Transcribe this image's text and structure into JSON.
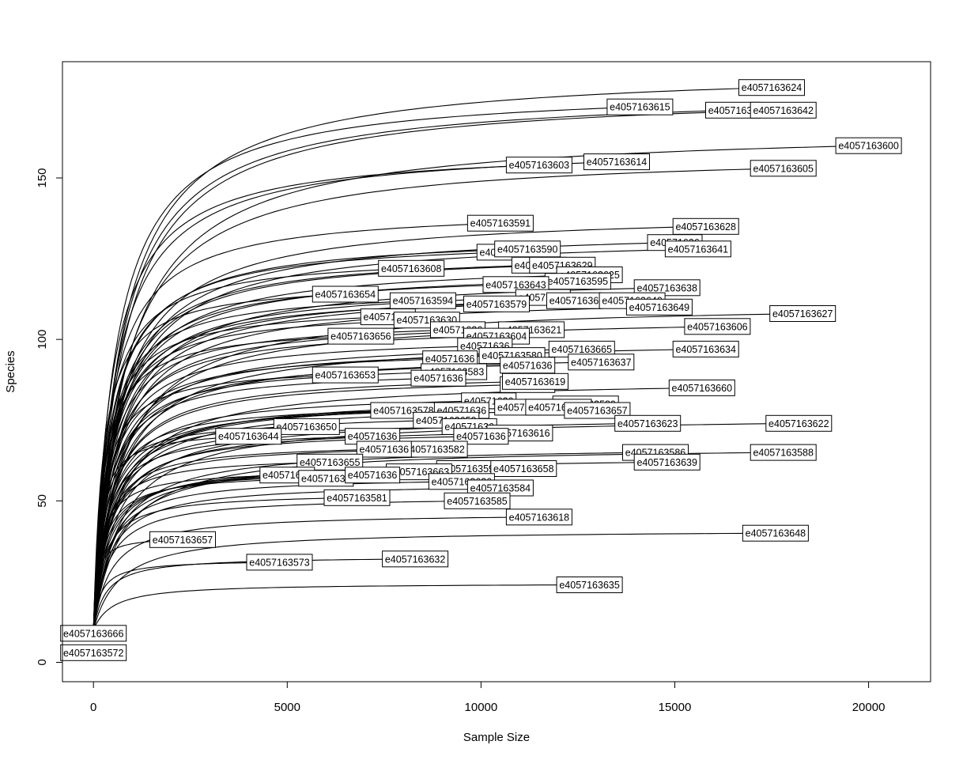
{
  "chart_data": {
    "type": "line",
    "subtype": "rarefaction-curves",
    "xlabel": "Sample Size",
    "ylabel": "Species",
    "xlim": [
      -800,
      21600
    ],
    "ylim": [
      -6,
      186
    ],
    "xticks": [
      0,
      5000,
      10000,
      15000,
      20000
    ],
    "xtick_labels": [
      "0",
      "5000",
      "10000",
      "15000",
      "20000"
    ],
    "yticks": [
      0,
      50,
      100,
      150
    ],
    "ytick_labels": [
      "0",
      "50",
      "100",
      "150"
    ],
    "grid": false,
    "legend": "none",
    "line_color": "#000000",
    "curve_start": [
      0,
      10
    ],
    "series": [
      {
        "name": "e4057163624",
        "end_x": 17500,
        "end_y": 178
      },
      {
        "name": "e4057163615",
        "end_x": 14100,
        "end_y": 172
      },
      {
        "name": "e40571636",
        "end_x": 16500,
        "end_y": 171
      },
      {
        "name": "e4057163642",
        "end_x": 17800,
        "end_y": 171
      },
      {
        "name": "e4057163600",
        "end_x": 20000,
        "end_y": 160
      },
      {
        "name": "e4057163603",
        "end_x": 11500,
        "end_y": 154
      },
      {
        "name": "e4057163614",
        "end_x": 13500,
        "end_y": 155
      },
      {
        "name": "e4057163605",
        "end_x": 17800,
        "end_y": 153
      },
      {
        "name": "e4057163591",
        "end_x": 10500,
        "end_y": 136
      },
      {
        "name": "e4057163628",
        "end_x": 15800,
        "end_y": 135
      },
      {
        "name": "e40571636",
        "end_x": 15000,
        "end_y": 130
      },
      {
        "name": "e4057163641",
        "end_x": 15600,
        "end_y": 128
      },
      {
        "name": "e40571636",
        "end_x": 10600,
        "end_y": 127
      },
      {
        "name": "e4057163590",
        "end_x": 11200,
        "end_y": 128
      },
      {
        "name": "e40571636",
        "end_x": 11500,
        "end_y": 123
      },
      {
        "name": "e4057163629",
        "end_x": 12100,
        "end_y": 123
      },
      {
        "name": "e4057163608",
        "end_x": 8200,
        "end_y": 122
      },
      {
        "name": "e4057163625",
        "end_x": 12800,
        "end_y": 120
      },
      {
        "name": "e4057163595",
        "end_x": 12500,
        "end_y": 118
      },
      {
        "name": "e4057163643",
        "end_x": 10900,
        "end_y": 117
      },
      {
        "name": "e4057163638",
        "end_x": 14800,
        "end_y": 116
      },
      {
        "name": "e4057163654",
        "end_x": 6500,
        "end_y": 114
      },
      {
        "name": "e40571636",
        "end_x": 11600,
        "end_y": 113
      },
      {
        "name": "e4057163594",
        "end_x": 8500,
        "end_y": 112
      },
      {
        "name": "e4057163579",
        "end_x": 10400,
        "end_y": 111
      },
      {
        "name": "e40571636",
        "end_x": 12400,
        "end_y": 112
      },
      {
        "name": "e4057163640",
        "end_x": 13900,
        "end_y": 112
      },
      {
        "name": "e4057163649",
        "end_x": 14600,
        "end_y": 110
      },
      {
        "name": "e4057163627",
        "end_x": 18300,
        "end_y": 108
      },
      {
        "name": "e40571636",
        "end_x": 7600,
        "end_y": 107
      },
      {
        "name": "e4057163630",
        "end_x": 8600,
        "end_y": 106
      },
      {
        "name": "e4057163606",
        "end_x": 16100,
        "end_y": 104
      },
      {
        "name": "e4057163621",
        "end_x": 11300,
        "end_y": 103
      },
      {
        "name": "e40571636",
        "end_x": 9400,
        "end_y": 103
      },
      {
        "name": "e4057163656",
        "end_x": 6900,
        "end_y": 101
      },
      {
        "name": "e4057163604",
        "end_x": 10400,
        "end_y": 101
      },
      {
        "name": "e40571636",
        "end_x": 10100,
        "end_y": 98
      },
      {
        "name": "e4057163665",
        "end_x": 12600,
        "end_y": 97
      },
      {
        "name": "e4057163634",
        "end_x": 15800,
        "end_y": 97
      },
      {
        "name": "e40571636",
        "end_x": 9200,
        "end_y": 94
      },
      {
        "name": "e4057163580",
        "end_x": 10800,
        "end_y": 95
      },
      {
        "name": "e4057163637",
        "end_x": 13100,
        "end_y": 93
      },
      {
        "name": "e40571636",
        "end_x": 11200,
        "end_y": 92
      },
      {
        "name": "e4057163653",
        "end_x": 6500,
        "end_y": 89
      },
      {
        "name": "e4057163583",
        "end_x": 9300,
        "end_y": 90
      },
      {
        "name": "e40571636",
        "end_x": 8900,
        "end_y": 88
      },
      {
        "name": "e40571636",
        "end_x": 11200,
        "end_y": 86
      },
      {
        "name": "e4057163619",
        "end_x": 11400,
        "end_y": 87
      },
      {
        "name": "e4057163660",
        "end_x": 15700,
        "end_y": 85
      },
      {
        "name": "e40571636",
        "end_x": 10200,
        "end_y": 81
      },
      {
        "name": "e4057163589",
        "end_x": 12700,
        "end_y": 80
      },
      {
        "name": "e4057163578",
        "end_x": 8000,
        "end_y": 78
      },
      {
        "name": "e40571636",
        "end_x": 9500,
        "end_y": 78
      },
      {
        "name": "e4057163631",
        "end_x": 11200,
        "end_y": 79
      },
      {
        "name": "e4057163652",
        "end_x": 12000,
        "end_y": 79
      },
      {
        "name": "e4057163657",
        "end_x": 13000,
        "end_y": 78
      },
      {
        "name": "e4057163659",
        "end_x": 9100,
        "end_y": 75
      },
      {
        "name": "e4057163623",
        "end_x": 14300,
        "end_y": 74
      },
      {
        "name": "e4057163622",
        "end_x": 18200,
        "end_y": 74
      },
      {
        "name": "e4057163650",
        "end_x": 5500,
        "end_y": 73
      },
      {
        "name": "e40571636",
        "end_x": 9700,
        "end_y": 73
      },
      {
        "name": "e4057163616",
        "end_x": 11000,
        "end_y": 71
      },
      {
        "name": "e4057163644",
        "end_x": 4000,
        "end_y": 70
      },
      {
        "name": "e40571636",
        "end_x": 7200,
        "end_y": 70
      },
      {
        "name": "e40571636",
        "end_x": 10000,
        "end_y": 70
      },
      {
        "name": "e4057163582",
        "end_x": 8800,
        "end_y": 66
      },
      {
        "name": "e40571636",
        "end_x": 7500,
        "end_y": 66
      },
      {
        "name": "e4057163586",
        "end_x": 14500,
        "end_y": 65
      },
      {
        "name": "e4057163588",
        "end_x": 17800,
        "end_y": 65
      },
      {
        "name": "e4057163655",
        "end_x": 6100,
        "end_y": 62
      },
      {
        "name": "e4057163599",
        "end_x": 9700,
        "end_y": 60
      },
      {
        "name": "e4057163658",
        "end_x": 11100,
        "end_y": 60
      },
      {
        "name": "e4057163639",
        "end_x": 14800,
        "end_y": 62
      },
      {
        "name": "e4057163663",
        "end_x": 8400,
        "end_y": 59
      },
      {
        "name": "e40571636",
        "end_x": 5000,
        "end_y": 58
      },
      {
        "name": "e40571636",
        "end_x": 6000,
        "end_y": 57
      },
      {
        "name": "e40571636",
        "end_x": 7200,
        "end_y": 58
      },
      {
        "name": "e4057163626",
        "end_x": 9500,
        "end_y": 56
      },
      {
        "name": "e4057163584",
        "end_x": 10500,
        "end_y": 54
      },
      {
        "name": "e4057163581",
        "end_x": 6800,
        "end_y": 51
      },
      {
        "name": "e4057163585",
        "end_x": 9900,
        "end_y": 50
      },
      {
        "name": "e4057163618",
        "end_x": 11500,
        "end_y": 45
      },
      {
        "name": "e4057163657",
        "end_x": 2300,
        "end_y": 38
      },
      {
        "name": "e4057163648",
        "end_x": 17600,
        "end_y": 40
      },
      {
        "name": "e4057163573",
        "end_x": 4800,
        "end_y": 31
      },
      {
        "name": "e4057163632",
        "end_x": 8300,
        "end_y": 32
      },
      {
        "name": "e4057163635",
        "end_x": 12800,
        "end_y": 24
      },
      {
        "name": "e4057163666",
        "end_x": 0,
        "end_y": 9
      },
      {
        "name": "e4057163572",
        "end_x": 0,
        "end_y": 3
      }
    ]
  }
}
